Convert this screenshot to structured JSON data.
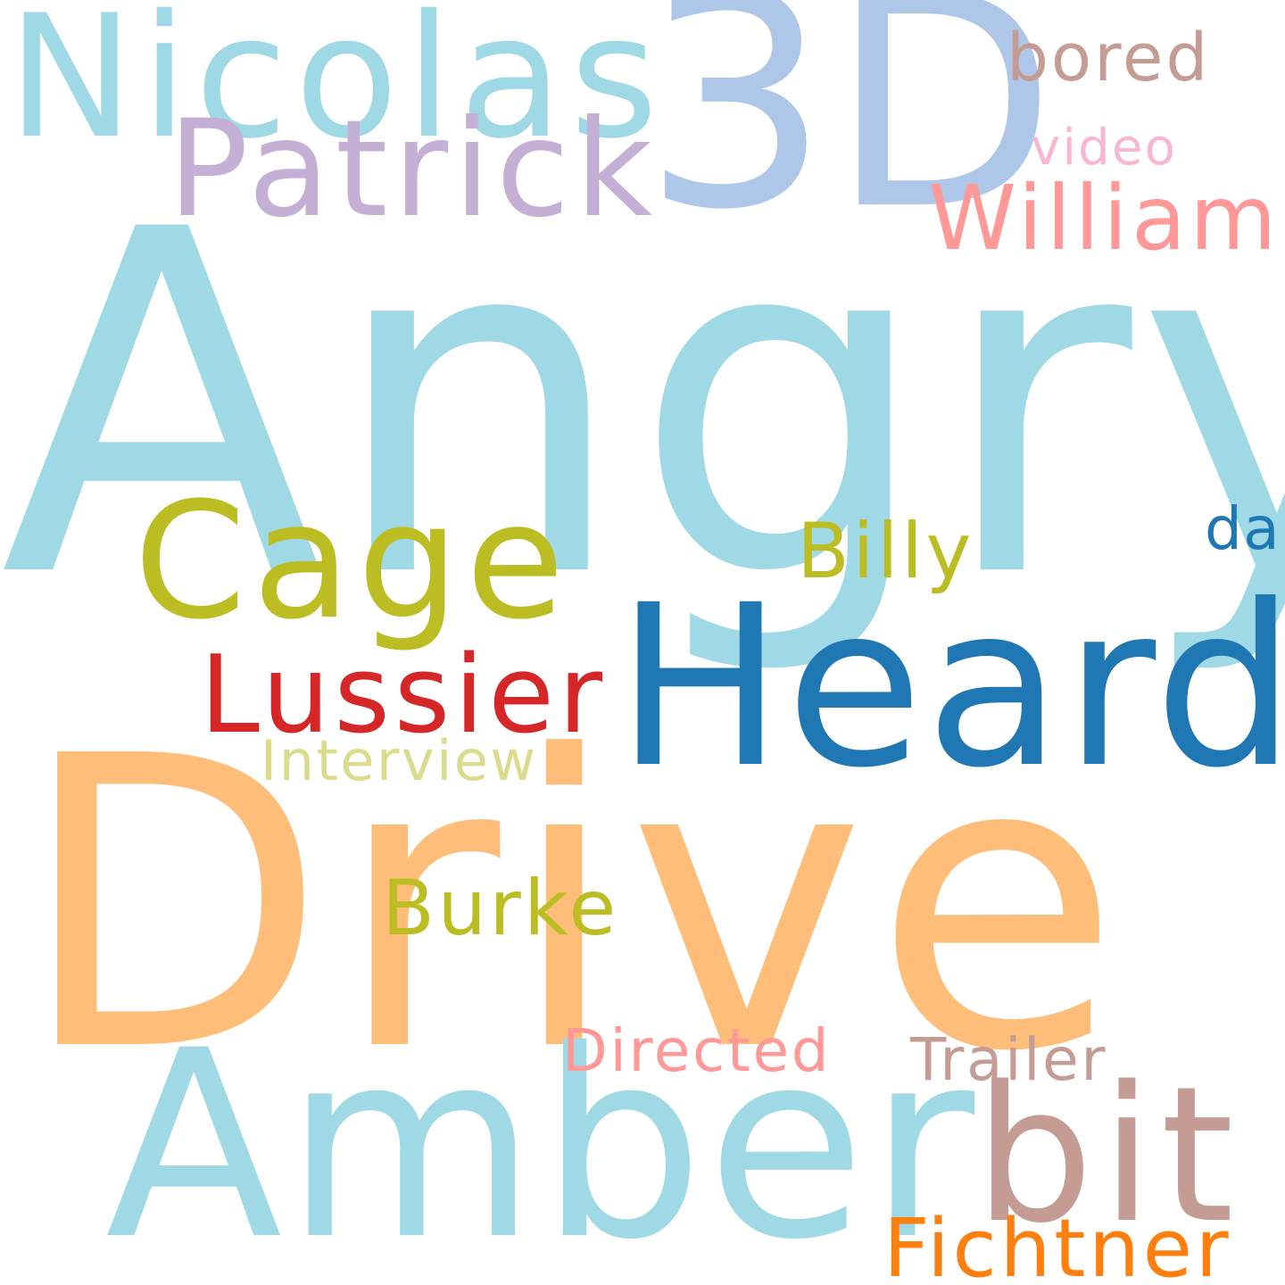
{
  "words": {
    "angry": {
      "text": "Angry",
      "color": "#9fd9e5"
    },
    "drive": {
      "text": "Drive",
      "color": "#febe7a"
    },
    "three_d": {
      "text": "3D",
      "color": "#aec7e8"
    },
    "amber": {
      "text": "Amber",
      "color": "#9fd9e5"
    },
    "heard": {
      "text": "Heard",
      "color": "#1f77b4"
    },
    "nicolas": {
      "text": "Nicolas",
      "color": "#9fd9e5"
    },
    "cage": {
      "text": "Cage",
      "color": "#bcbd22"
    },
    "bit": {
      "text": "bit",
      "color": "#c49c94"
    },
    "patrick": {
      "text": "Patrick",
      "color": "#c5b0d5"
    },
    "lussier": {
      "text": "Lussier",
      "color": "#d62728"
    },
    "william": {
      "text": "William",
      "color": "#ff9896"
    },
    "fichtner": {
      "text": "Fichtner",
      "color": "#ff7f0e"
    },
    "burke": {
      "text": "Burke",
      "color": "#bcbd22"
    },
    "billy": {
      "text": "Billy",
      "color": "#bcbd22"
    },
    "bored": {
      "text": "bored",
      "color": "#c49c94"
    },
    "directed": {
      "text": "Directed",
      "color": "#ff9896"
    },
    "trailer": {
      "text": "Trailer",
      "color": "#c49c94"
    },
    "da": {
      "text": "da",
      "color": "#1f77b4"
    },
    "interview": {
      "text": "Interview",
      "color": "#dbdb8d"
    },
    "video": {
      "text": "video",
      "color": "#f7b6d2"
    }
  },
  "background_color": "#ffffff"
}
